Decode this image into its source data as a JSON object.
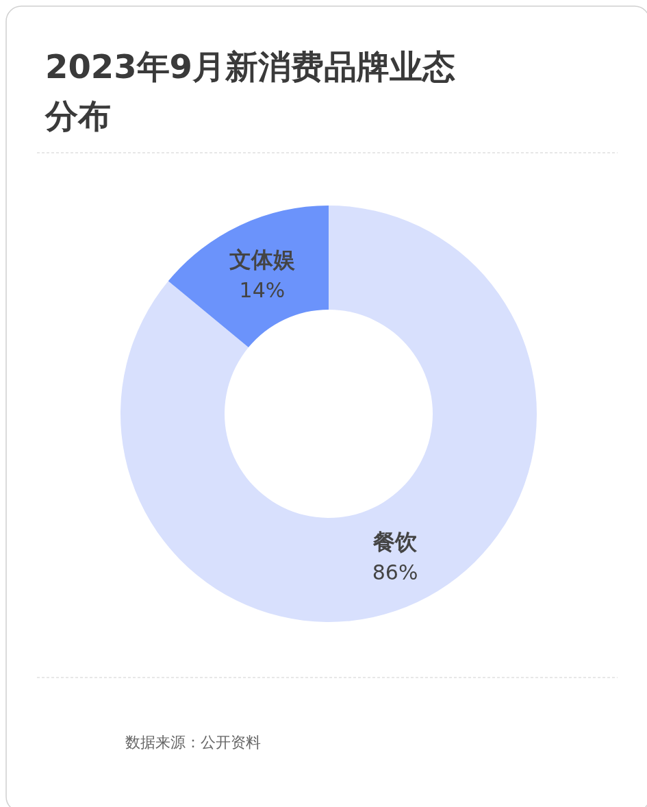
{
  "chart_data": {
    "type": "donut",
    "title": "2023年9月新消费品牌业态分布",
    "categories": [
      "餐饮",
      "文体娱"
    ],
    "values": [
      86,
      14
    ],
    "colors": [
      "#d8e0fd",
      "#6b93fb"
    ],
    "value_labels": [
      "86%",
      "14%"
    ],
    "annotations": [
      "数据来源：公开资料"
    ]
  }
}
